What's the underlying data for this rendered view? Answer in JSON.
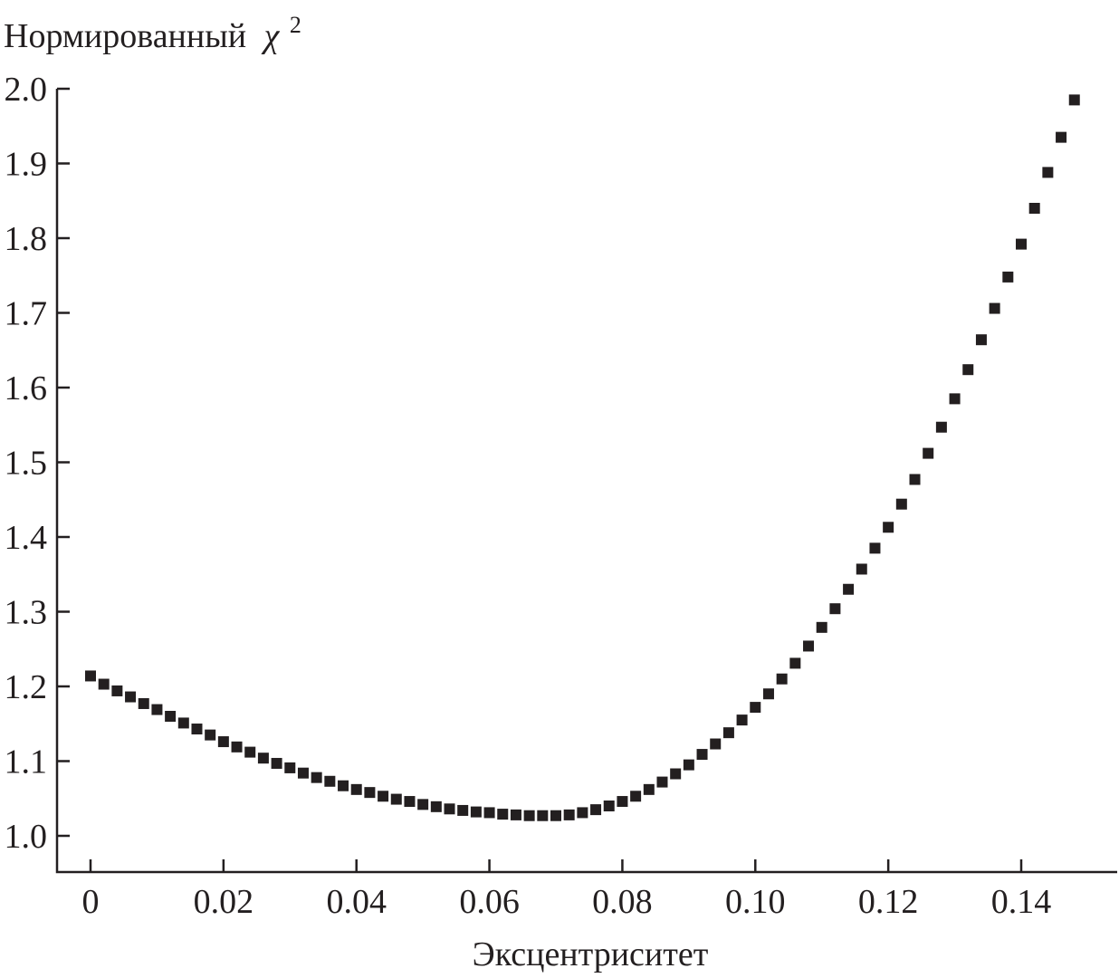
{
  "chart_data": {
    "type": "scatter",
    "title": "",
    "ylabel": "Нормированный",
    "ylabel_symbol": "χ",
    "ylabel_superscript": "2",
    "xlabel": "Эксцентриситет",
    "xlim": [
      0,
      0.15
    ],
    "ylim": [
      1.0,
      2.0
    ],
    "x_ticks": [
      0,
      0.02,
      0.04,
      0.06,
      0.08,
      0.1,
      0.12,
      0.14
    ],
    "x_tick_labels": [
      "0",
      "0.02",
      "0.04",
      "0.06",
      "0.08",
      "0.10",
      "0.12",
      "0.14"
    ],
    "y_ticks": [
      1.0,
      1.1,
      1.2,
      1.3,
      1.4,
      1.5,
      1.6,
      1.7,
      1.8,
      1.9,
      2.0
    ],
    "y_tick_labels": [
      "1.0",
      "1.1",
      "1.2",
      "1.3",
      "1.4",
      "1.5",
      "1.6",
      "1.7",
      "1.8",
      "1.9",
      "2.0"
    ],
    "grid": false,
    "marker_color": "#231f20",
    "series": [
      {
        "x": [
          0.0,
          0.002,
          0.004,
          0.006,
          0.008,
          0.01,
          0.012,
          0.014,
          0.016,
          0.018,
          0.02,
          0.022,
          0.024,
          0.026,
          0.028,
          0.03,
          0.032,
          0.034,
          0.036,
          0.038,
          0.04,
          0.042,
          0.044,
          0.046,
          0.048,
          0.05,
          0.052,
          0.054,
          0.056,
          0.058,
          0.06,
          0.062,
          0.064,
          0.066,
          0.068,
          0.07,
          0.072,
          0.074,
          0.076,
          0.078,
          0.08,
          0.082,
          0.084,
          0.086,
          0.088,
          0.09,
          0.092,
          0.094,
          0.096,
          0.098,
          0.1,
          0.102,
          0.104,
          0.106,
          0.108,
          0.11,
          0.112,
          0.114,
          0.116,
          0.118,
          0.12,
          0.122,
          0.124,
          0.126,
          0.128,
          0.13,
          0.132,
          0.134,
          0.136,
          0.138,
          0.14,
          0.142,
          0.144,
          0.146,
          0.148
        ],
        "y": [
          1.214,
          1.203,
          1.194,
          1.186,
          1.177,
          1.169,
          1.16,
          1.151,
          1.143,
          1.135,
          1.126,
          1.119,
          1.112,
          1.104,
          1.097,
          1.091,
          1.084,
          1.078,
          1.073,
          1.067,
          1.062,
          1.058,
          1.053,
          1.049,
          1.046,
          1.042,
          1.039,
          1.036,
          1.034,
          1.032,
          1.031,
          1.029,
          1.028,
          1.027,
          1.027,
          1.027,
          1.028,
          1.031,
          1.035,
          1.04,
          1.046,
          1.053,
          1.062,
          1.072,
          1.083,
          1.095,
          1.109,
          1.123,
          1.138,
          1.155,
          1.172,
          1.19,
          1.21,
          1.231,
          1.254,
          1.279,
          1.304,
          1.33,
          1.357,
          1.385,
          1.413,
          1.444,
          1.477,
          1.512,
          1.547,
          1.585,
          1.624,
          1.664,
          1.706,
          1.748,
          1.792,
          1.84,
          1.888,
          1.935,
          1.985
        ]
      }
    ]
  }
}
